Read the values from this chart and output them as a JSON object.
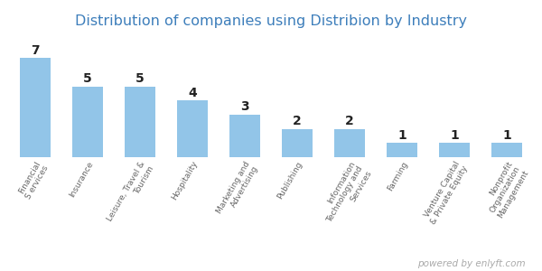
{
  "title": "Distribution of companies using Distribion by Industry",
  "categories": [
    "Financial\nS ervices",
    "Insurance",
    "Leisure, Travel &\nTourism",
    "Hospitality",
    "Marketing and\nAdvertising",
    "Publishing",
    "Information\nTechnology and\nServices",
    "Farming",
    "Venture Capital\n& Private Equity",
    "Nonprofit\nOrganization\nManagement"
  ],
  "values": [
    7,
    5,
    5,
    4,
    3,
    2,
    2,
    1,
    1,
    1
  ],
  "bar_color": "#92C5E8",
  "title_color": "#3D7EBB",
  "label_color": "#222222",
  "xlabel_color": "#666666",
  "watermark": "powered by enlyft.com",
  "watermark_color": "#AAAAAA",
  "ylim": [
    0,
    8.8
  ],
  "bar_width": 0.6,
  "title_fontsize": 11.5,
  "value_fontsize": 10,
  "tick_fontsize": 6.5,
  "label_rotation": 60
}
